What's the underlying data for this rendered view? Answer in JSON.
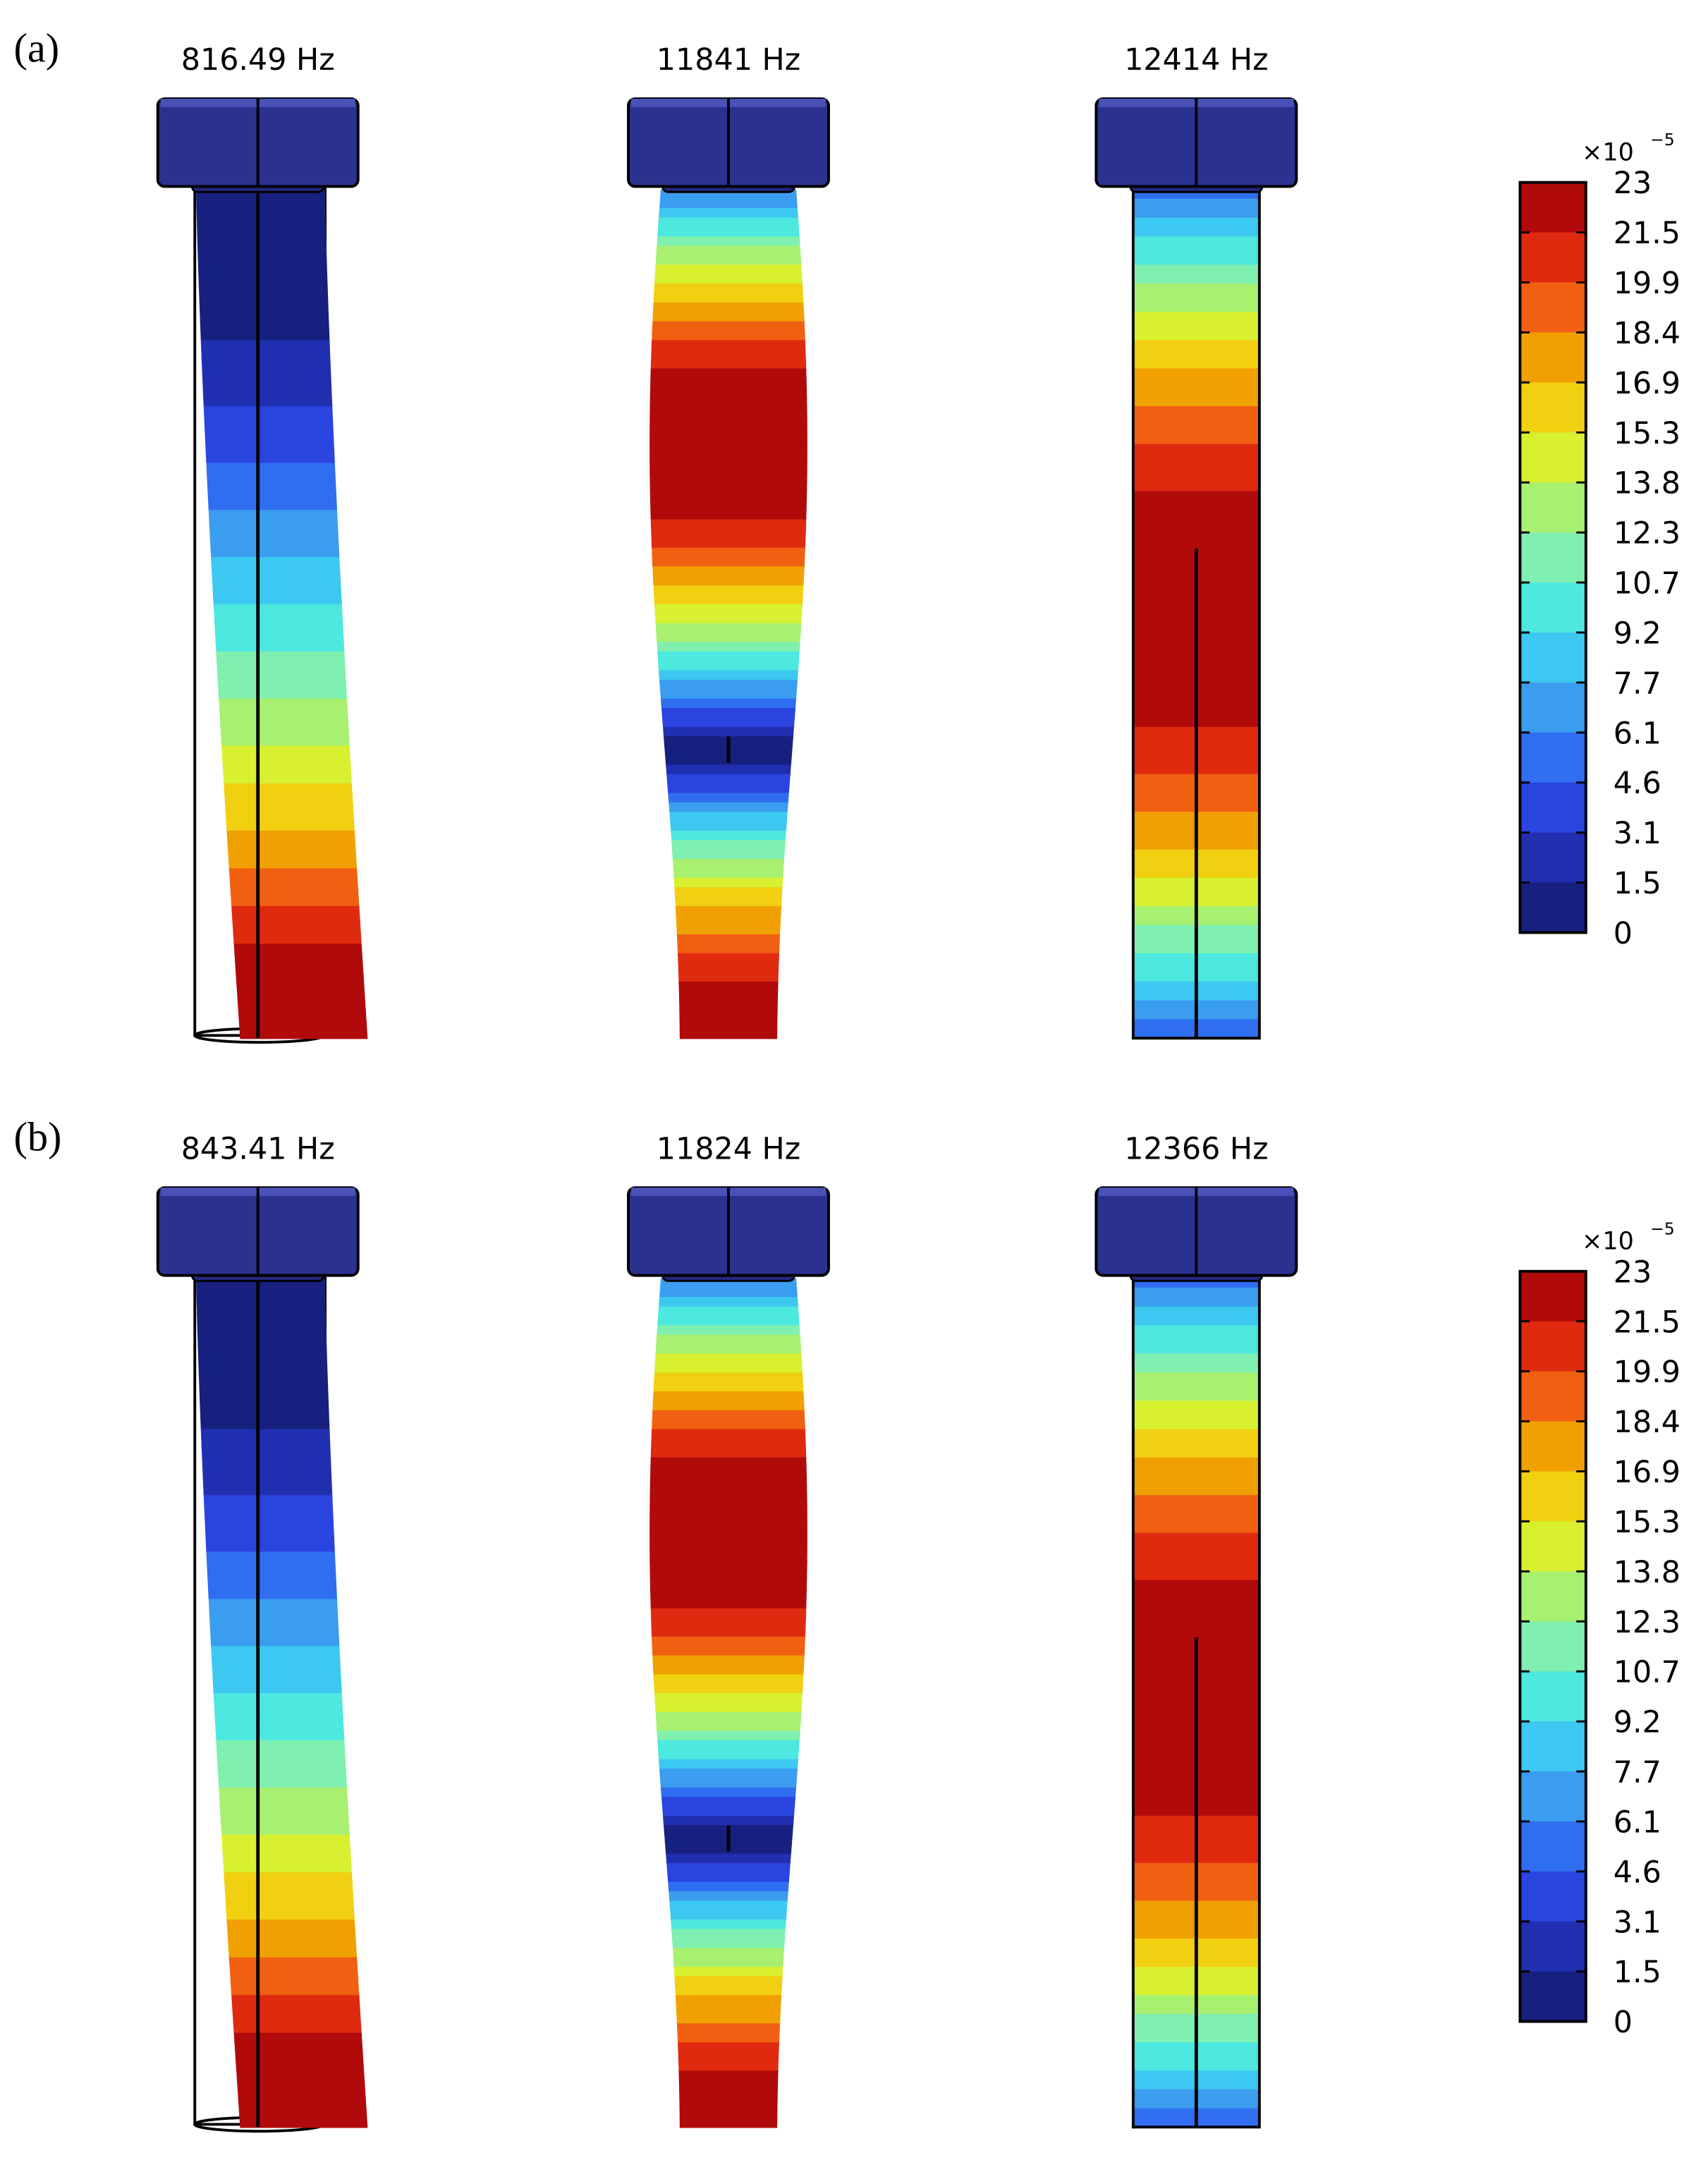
{
  "panels": [
    {
      "label": "(a)",
      "modes": [
        {
          "title": "816.49 Hz"
        },
        {
          "title": "11841 Hz"
        },
        {
          "title": "12414 Hz"
        }
      ],
      "colorbar": {
        "multiplier": "×10",
        "exponent": "−5",
        "ticks": [
          "23",
          "21.5",
          "19.9",
          "18.4",
          "16.9",
          "15.3",
          "13.8",
          "12.3",
          "10.7",
          "9.2",
          "7.7",
          "6.1",
          "4.6",
          "3.1",
          "1.5",
          "0"
        ]
      }
    },
    {
      "label": "(b)",
      "modes": [
        {
          "title": "843.41 Hz"
        },
        {
          "title": "11824 Hz"
        },
        {
          "title": "12366 Hz"
        }
      ],
      "colorbar": {
        "multiplier": "×10",
        "exponent": "−5",
        "ticks": [
          "23",
          "21.5",
          "19.9",
          "18.4",
          "16.9",
          "15.3",
          "13.8",
          "12.3",
          "10.7",
          "9.2",
          "7.7",
          "6.1",
          "4.6",
          "3.1",
          "1.5",
          "0"
        ]
      }
    }
  ]
}
